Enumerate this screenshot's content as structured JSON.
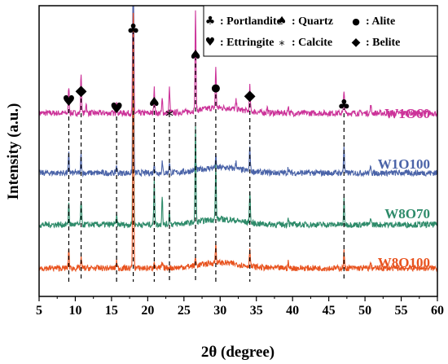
{
  "chart_data": {
    "type": "line",
    "xlabel": "2θ (degree)",
    "ylabel": "Intensity (a.u.)",
    "xlim": [
      5,
      60
    ],
    "x_ticks": [
      "5",
      "10",
      "15",
      "20",
      "25",
      "30",
      "35",
      "40",
      "45",
      "50",
      "55",
      "60"
    ],
    "y_ticks_shown": false,
    "legend": {
      "placement": "top-right",
      "entries": [
        {
          "symbol": "♣",
          "symbol_name": "club-icon",
          "label": ": Portlandite"
        },
        {
          "symbol": "♠",
          "symbol_name": "spade-icon",
          "label": ": Quartz"
        },
        {
          "symbol": "●",
          "symbol_name": "dot-icon",
          "label": ": Alite"
        },
        {
          "symbol": "♥",
          "symbol_name": "heart-icon",
          "label": ": Ettringite"
        },
        {
          "symbol": "*",
          "symbol_name": "asterisk-icon",
          "label": ": Calcite"
        },
        {
          "symbol": "◆",
          "symbol_name": "diamond-icon",
          "label": ": Belite"
        }
      ]
    },
    "peak_markers": [
      {
        "x": 9.1,
        "symbol": "♥",
        "symbol_name": "heart-icon"
      },
      {
        "x": 10.8,
        "symbol": "◆",
        "symbol_name": "diamond-icon"
      },
      {
        "x": 15.7,
        "symbol": "♥",
        "symbol_name": "heart-icon"
      },
      {
        "x": 18.0,
        "symbol": "♣",
        "symbol_name": "club-icon"
      },
      {
        "x": 20.9,
        "symbol": "♠",
        "symbol_name": "spade-icon"
      },
      {
        "x": 23.0,
        "symbol": "*",
        "symbol_name": "asterisk-icon"
      },
      {
        "x": 26.6,
        "symbol": "♠",
        "symbol_name": "spade-icon"
      },
      {
        "x": 29.4,
        "symbol": "●",
        "symbol_name": "dot-icon"
      },
      {
        "x": 34.1,
        "symbol": "◆",
        "symbol_name": "diamond-icon"
      },
      {
        "x": 47.1,
        "symbol": "♣",
        "symbol_name": "club-icon"
      }
    ],
    "series": [
      {
        "name": "W1O60",
        "color": "#cc3399",
        "baseline": 0.62,
        "peaks": [
          [
            9.1,
            0.1
          ],
          [
            10.8,
            0.15
          ],
          [
            11.5,
            0.04
          ],
          [
            15.7,
            0.05
          ],
          [
            18.0,
            0.98
          ],
          [
            20.9,
            0.1
          ],
          [
            22.0,
            0.05
          ],
          [
            23.0,
            0.09
          ],
          [
            26.6,
            0.37
          ],
          [
            29.4,
            0.15
          ],
          [
            32.2,
            0.03
          ],
          [
            34.1,
            0.09
          ],
          [
            36.5,
            0.02
          ],
          [
            39.4,
            0.03
          ],
          [
            47.1,
            0.09
          ],
          [
            50.8,
            0.03
          ]
        ]
      },
      {
        "name": "W1O100",
        "color": "#4a63a8",
        "baseline": 0.4,
        "peaks": [
          [
            9.1,
            0.07
          ],
          [
            10.8,
            0.07
          ],
          [
            15.7,
            0.03
          ],
          [
            18.0,
            0.9
          ],
          [
            20.9,
            0.04
          ],
          [
            22.0,
            0.04
          ],
          [
            23.0,
            0.04
          ],
          [
            26.6,
            0.05
          ],
          [
            29.4,
            0.04
          ],
          [
            32.2,
            0.03
          ],
          [
            34.1,
            0.09
          ],
          [
            39.4,
            0.02
          ],
          [
            47.1,
            0.1
          ],
          [
            50.8,
            0.03
          ]
        ]
      },
      {
        "name": "W8O70",
        "color": "#2e8b6a",
        "baseline": 0.21,
        "peaks": [
          [
            9.1,
            0.08
          ],
          [
            10.8,
            0.09
          ],
          [
            15.7,
            0.03
          ],
          [
            18.0,
            0.75
          ],
          [
            20.9,
            0.17
          ],
          [
            22.0,
            0.11
          ],
          [
            23.0,
            0.05
          ],
          [
            26.6,
            0.36
          ],
          [
            29.4,
            0.2
          ],
          [
            34.1,
            0.12
          ],
          [
            39.4,
            0.03
          ],
          [
            47.1,
            0.09
          ],
          [
            50.8,
            0.03
          ]
        ]
      },
      {
        "name": "W8O100",
        "color": "#e8531f",
        "baseline": 0.05,
        "peaks": [
          [
            9.1,
            0.07
          ],
          [
            10.8,
            0.04
          ],
          [
            15.7,
            0.03
          ],
          [
            18.0,
            0.93
          ],
          [
            20.9,
            0.03
          ],
          [
            22.0,
            0.02
          ],
          [
            26.6,
            0.03
          ],
          [
            29.4,
            0.07
          ],
          [
            34.1,
            0.07
          ],
          [
            39.4,
            0.02
          ],
          [
            47.1,
            0.06
          ],
          [
            50.8,
            0.02
          ]
        ]
      }
    ],
    "series_label_colors": {
      "W1O60": "#cc3399",
      "W1O100": "#4a63a8",
      "W8O70": "#2e8b6a",
      "W8O100": "#e8531f"
    }
  }
}
